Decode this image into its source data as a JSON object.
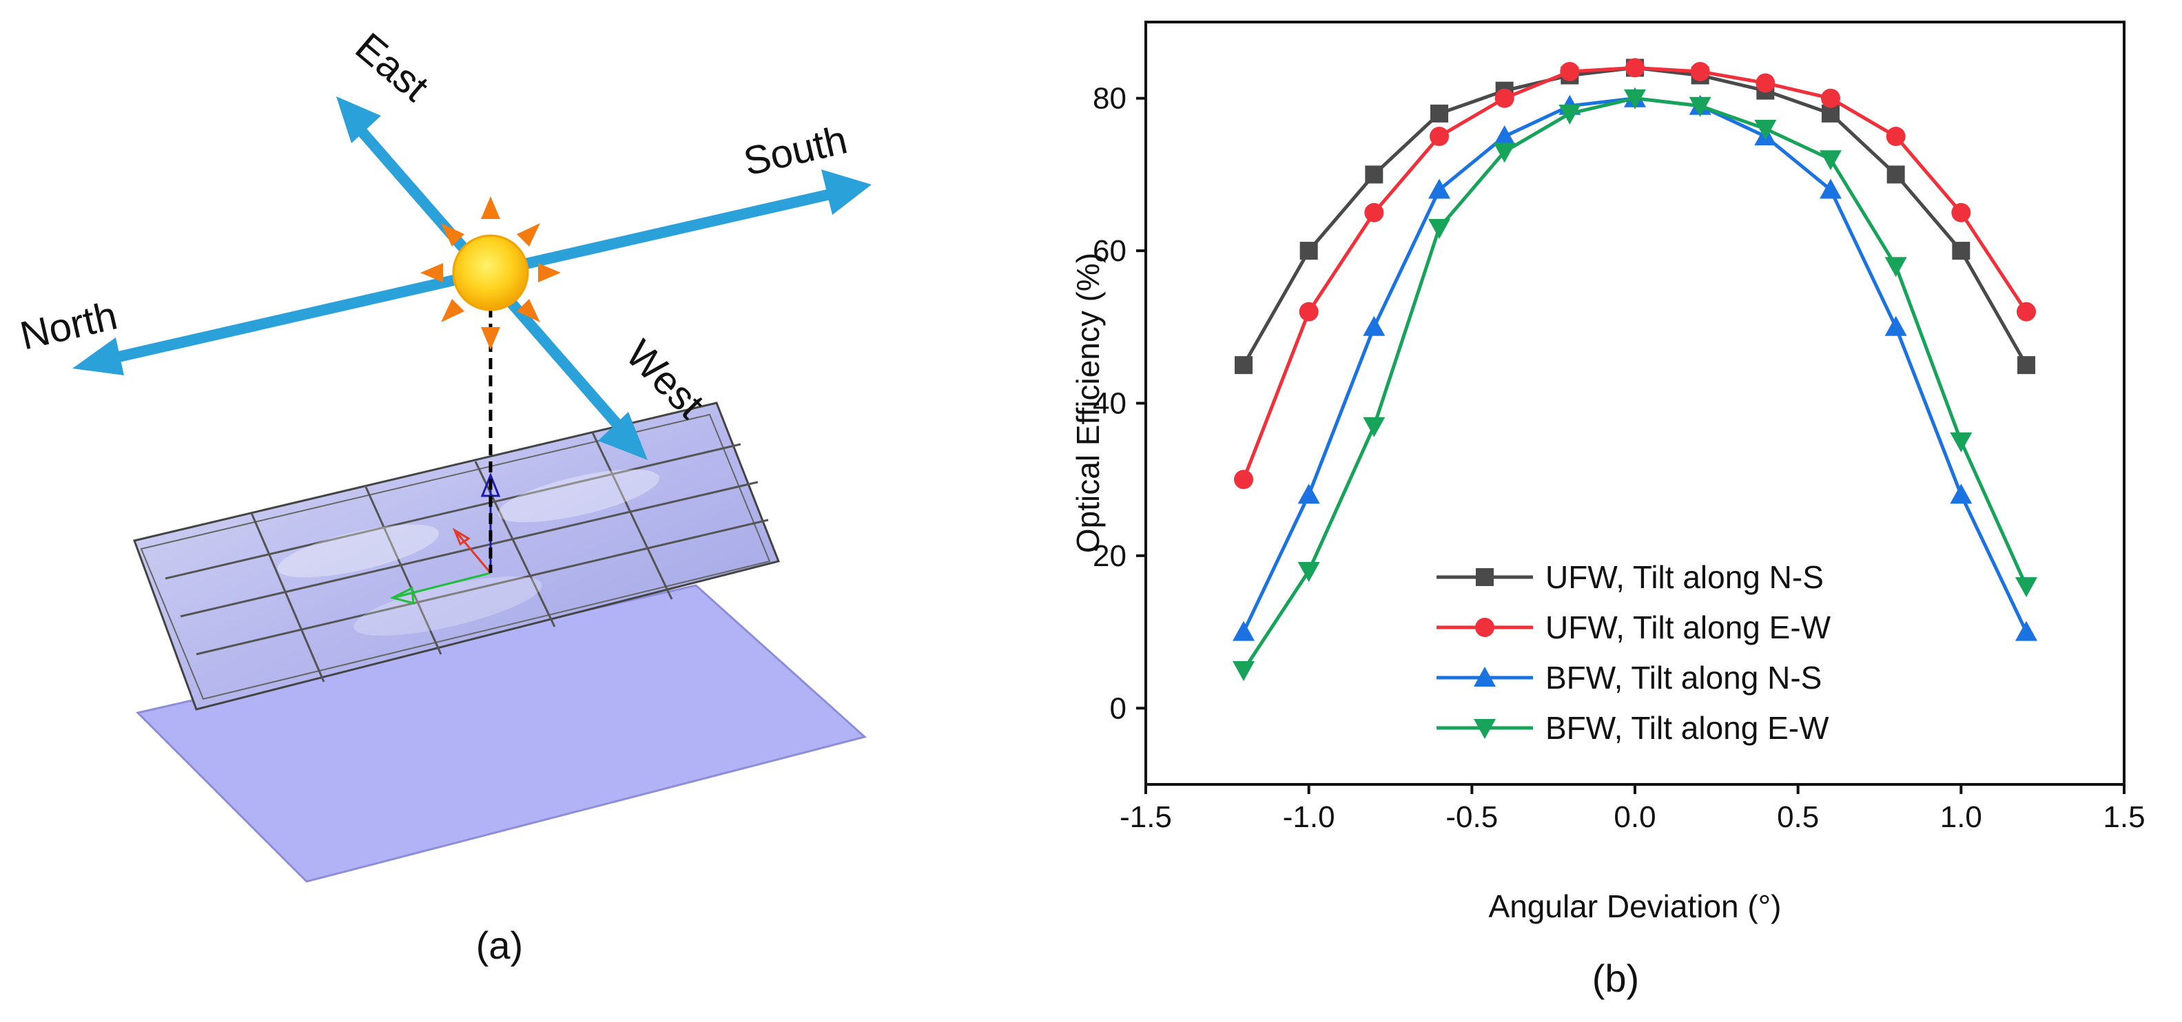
{
  "panel_a": {
    "label": "(a)",
    "directions": {
      "east": "East",
      "south": "South",
      "north": "North",
      "west": "West"
    },
    "colors": {
      "arrow": "#2aa1d9",
      "sun_core": "#ffd21f",
      "sun_edge": "#f2a300",
      "sun_rays": "#f47b0f",
      "panel": "#b9bbf2",
      "plate": "#b2b2f7"
    }
  },
  "panel_b": {
    "label": "(b)"
  },
  "chart_data": {
    "type": "line",
    "title": "",
    "xlabel": "Angular Deviation (°)",
    "ylabel": "Optical Efficiency (%)",
    "xlim": [
      -1.5,
      1.5
    ],
    "ylim": [
      -10,
      90
    ],
    "xticks": [
      "-1.5",
      "-1.0",
      "-0.5",
      "0.0",
      "0.5",
      "1.0",
      "1.5"
    ],
    "yticks": [
      "0",
      "20",
      "40",
      "60",
      "80"
    ],
    "grid": false,
    "legend_position": "bottom-center",
    "x": [
      -1.2,
      -1.0,
      -0.8,
      -0.6,
      -0.4,
      -0.2,
      0.0,
      0.2,
      0.4,
      0.6,
      0.8,
      1.0,
      1.2
    ],
    "series": [
      {
        "name": "UFW, Tilt along N-S",
        "color": "#4a4a4a",
        "marker": "square",
        "values": [
          45,
          60,
          70,
          78,
          81,
          83,
          84,
          83,
          81,
          78,
          70,
          60,
          45
        ]
      },
      {
        "name": "UFW, Tilt along E-W",
        "color": "#f0303a",
        "marker": "circle",
        "values": [
          30,
          52,
          65,
          75,
          80,
          83.5,
          84,
          83.5,
          82,
          80,
          75,
          65,
          52
        ]
      },
      {
        "name": "BFW, Tilt along N-S",
        "color": "#1a73e0",
        "marker": "triangle-up",
        "values": [
          10,
          28,
          50,
          68,
          75,
          79,
          80,
          79,
          75,
          68,
          50,
          28,
          10
        ]
      },
      {
        "name": "BFW, Tilt along E-W",
        "color": "#17a35a",
        "marker": "triangle-down",
        "values": [
          5,
          18,
          37,
          63,
          73,
          78,
          80,
          79,
          76,
          72,
          58,
          35,
          16
        ]
      }
    ]
  }
}
